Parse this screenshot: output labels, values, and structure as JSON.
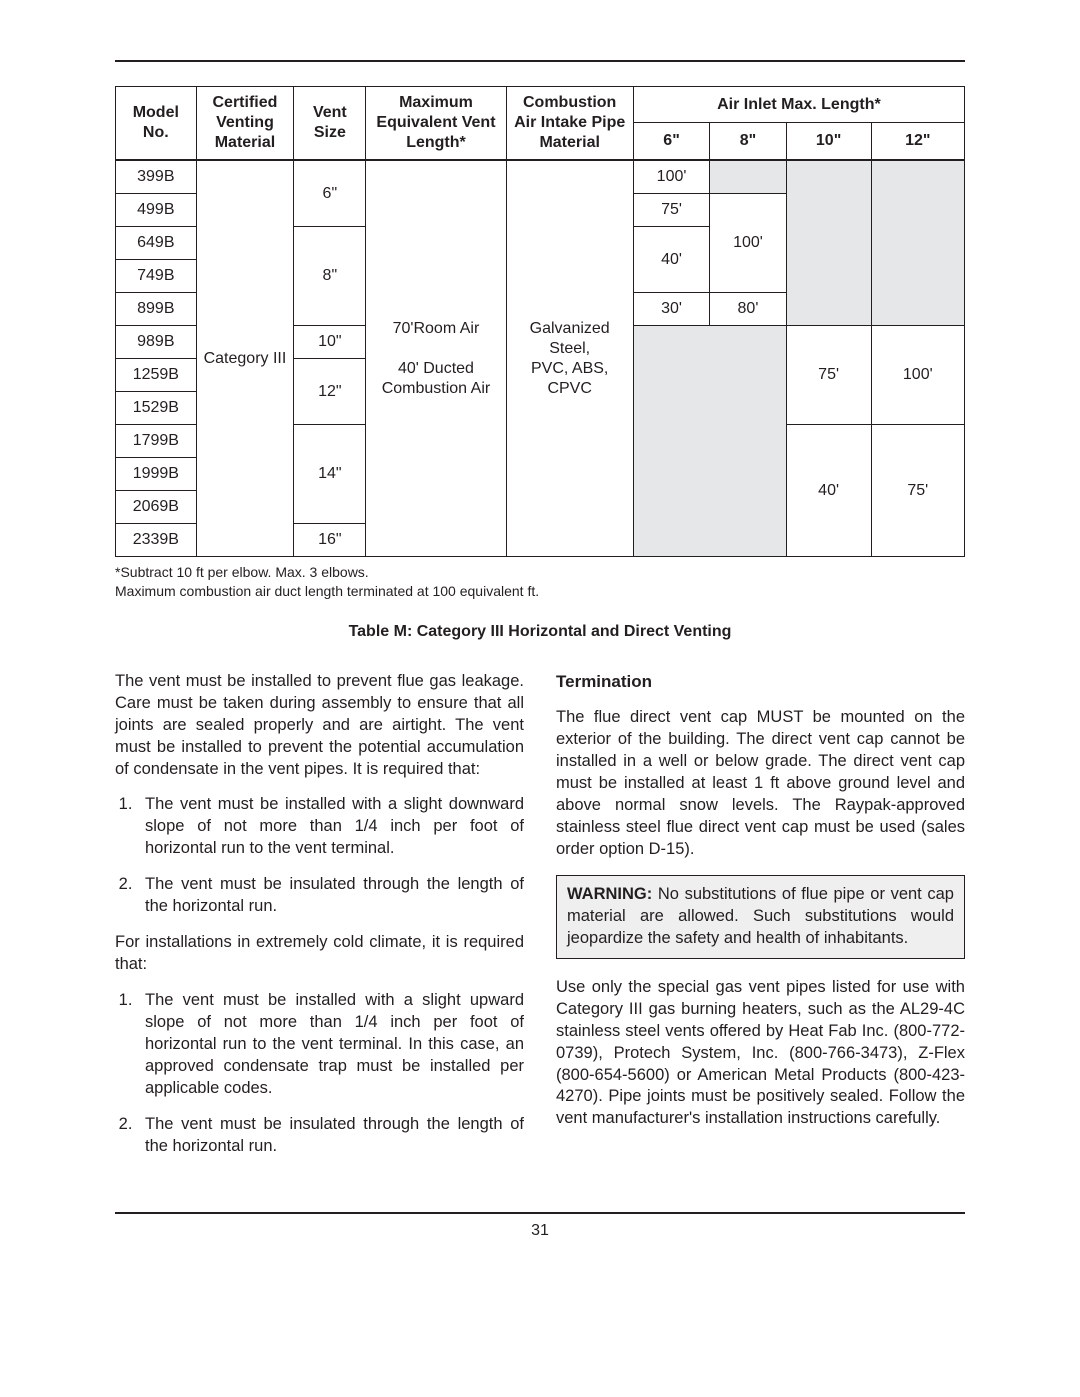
{
  "page_number": "31",
  "table": {
    "caption": "Table M:  Category III Horizontal and Direct Venting",
    "headers": {
      "model": "Model No.",
      "cert_mat": "Certified Venting Material",
      "vent_size": "Vent Size",
      "max_eq": "Maximum Equivalent Vent Length*",
      "intake_mat": "Combustion Air Intake Pipe Material",
      "air_inlet": "Air Inlet Max. Length*",
      "air_6": "6\"",
      "air_8": "8\"",
      "air_10": "10\"",
      "air_12": "12\""
    },
    "shared": {
      "cert_mat_value": "Category III",
      "max_eq_value": "70'Room Air\n\n40' Ducted Combustion Air",
      "intake_mat_value": "Galvanized Steel,\nPVC, ABS, CPVC"
    },
    "models": [
      "399B",
      "499B",
      "649B",
      "749B",
      "899B",
      "989B",
      "1259B",
      "1529B",
      "1799B",
      "1999B",
      "2069B",
      "2339B"
    ],
    "vent_sizes": {
      "6": "6\"",
      "8": "8\"",
      "10": "10\"",
      "12": "12\"",
      "14": "14\"",
      "16": "16\""
    },
    "air6": {
      "v100": "100'",
      "v75": "75'",
      "v40": "40'",
      "v30": "30'"
    },
    "air8": {
      "v100": "100'",
      "v80": "80'"
    },
    "air10": {
      "v75": "75'",
      "v40": "40'"
    },
    "air12": {
      "v100": "100'",
      "v75": "75'"
    }
  },
  "footnotes": {
    "l1": "*Subtract 10 ft per elbow. Max. 3 elbows.",
    "l2": "Maximum combustion air duct length terminated at 100 equivalent ft."
  },
  "body": {
    "left": {
      "p1": "The vent must be installed to prevent flue gas leakage. Care must be taken during assembly to ensure that all joints are sealed properly and are airtight. The vent must be installed to prevent the potential accumulation of condensate in the vent pipes. It is required that:",
      "li1": "The vent must be installed with a slight downward slope of not more than 1/4 inch per foot of horizontal run to the vent terminal.",
      "li2": "The vent must be insulated through the length of the horizontal run.",
      "p2": "For installations in extremely cold climate, it is required that:",
      "li3": "The vent must be installed with a slight upward slope of not more than 1/4 inch per foot of horizontal run to the vent terminal. In this case, an approved condensate trap must be installed per applicable codes.",
      "li4": "The vent must be insulated through the length of the horizontal run."
    },
    "right": {
      "h": "Termination",
      "p1": "The flue direct vent cap MUST be mounted on the exterior of the building. The direct vent cap cannot be installed in a well or below grade. The direct vent cap must be installed at least 1 ft above ground level and above normal snow levels. The Raypak-approved stainless steel flue direct vent cap must be used (sales order option D-15).",
      "warn_label": "WARNING:",
      "warn_body": " No substitutions of flue pipe or vent cap material are allowed. Such substitutions would jeopardize the safety and health of inhabitants.",
      "p2": "Use only the special gas vent pipes listed for use with Category III gas burning heaters, such as the AL29-4C stainless steel vents offered by Heat Fab Inc. (800-772-0739), Protech System, Inc. (800-766-3473), Z-Flex (800-654-5600) or American Metal Products (800-423-4270). Pipe joints must be positively sealed. Follow the vent manufacturer's installation instructions carefully."
    }
  }
}
